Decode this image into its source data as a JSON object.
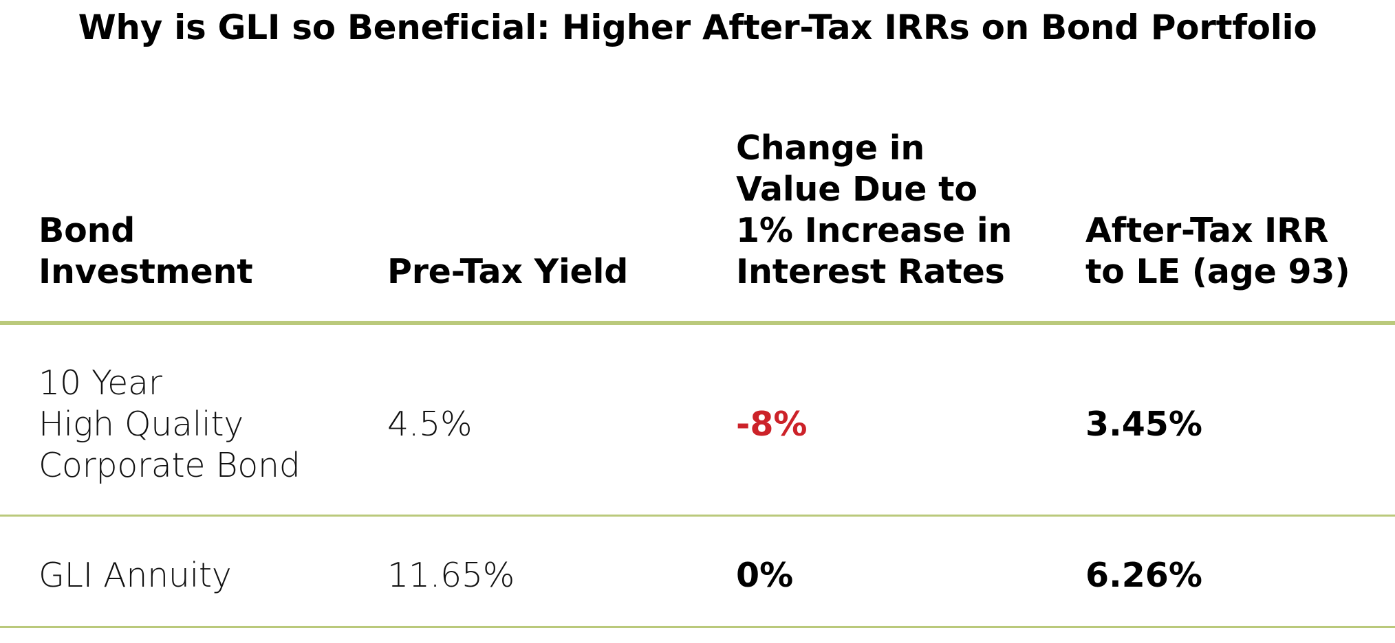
{
  "title": "Why is GLI so Beneficial: Higher After-Tax IRRs on Bond Portfolio",
  "table": {
    "headers": [
      {
        "lines": [
          "Bond",
          "Investment"
        ]
      },
      {
        "lines": [
          "Pre-Tax Yield"
        ]
      },
      {
        "lines": [
          "Change in",
          "Value Due to",
          "1% Increase in",
          "Interest Rates"
        ]
      },
      {
        "lines": [
          "After-Tax IRR",
          "to LE (age 93)"
        ]
      }
    ],
    "rows": [
      {
        "investment_lines": [
          "10 Year",
          "High Quality",
          "Corporate Bond"
        ],
        "pre_tax_yield": "4.5%",
        "change_in_value": "-8%",
        "after_tax_irr": "3.45%"
      },
      {
        "investment_lines": [
          "GLI Annuity"
        ],
        "pre_tax_yield": "11.65%",
        "change_in_value": "0%",
        "after_tax_irr": "6.26%"
      }
    ]
  },
  "colors": {
    "rule": "#bac97b",
    "negative": "#cc2229",
    "text": "#000000"
  }
}
